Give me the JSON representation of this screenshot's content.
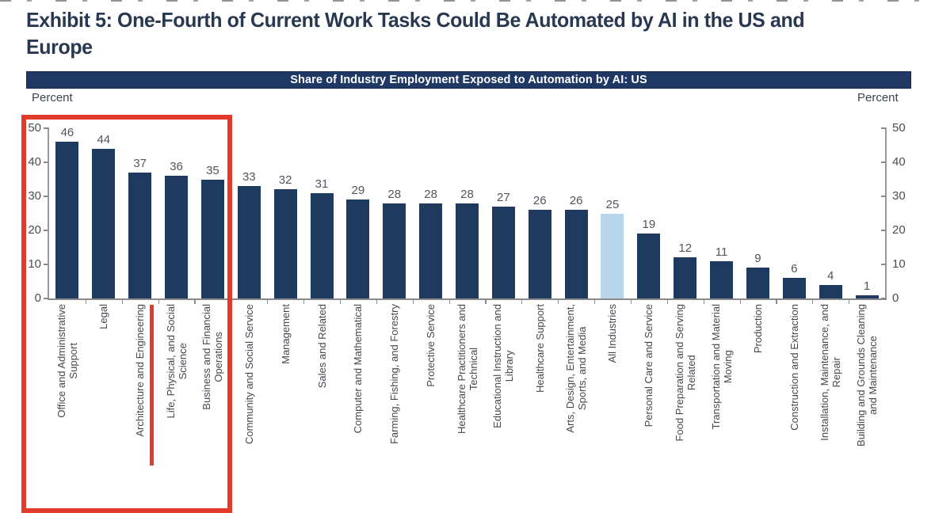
{
  "page": {
    "exhibit_title_lines": [
      "Exhibit 5: One-Fourth of Current Work Tasks Could Be Automated by AI in the US and",
      "Europe"
    ]
  },
  "colors": {
    "title_text": "#273850",
    "header_bg": "#1f3864",
    "header_text": "#ffffff",
    "annotation_red": "#e13b2b",
    "bar_navy": "#1e3a5f",
    "bar_highlight_blue": "#b9d5ec",
    "axis_gray": "#8a8a8a",
    "label_gray": "#45484f"
  },
  "chart": {
    "header_title": "Share of Industry Employment Exposed to Automation by AI: US",
    "left_axis_label": "Percent",
    "right_axis_label": "Percent",
    "y_ticks": [
      0,
      10,
      20,
      30,
      40,
      50
    ]
  },
  "chart_data": {
    "type": "bar",
    "title": "Share of Industry Employment Exposed to Automation by AI: US",
    "xlabel": "",
    "ylabel": "Percent",
    "ylim": [
      0,
      50
    ],
    "grid": false,
    "categories": [
      "Office and Administrative Support",
      "Legal",
      "Architecture and Engineering",
      "Life, Physical, and Social Science",
      "Business and Financial Operations",
      "Community and Social Service",
      "Management",
      "Sales and Related",
      "Computer and Mathematical",
      "Farming, Fishing, and Forestry",
      "Protective Service",
      "Healthcare Practitioners and Technical",
      "Educational Instruction and Library",
      "Healthcare Support",
      "Arts, Design, Entertainment, Sports, and Media",
      "All Industries",
      "Personal Care and Service",
      "Food Preparation and Serving Related",
      "Transportation and Material Moving",
      "Production",
      "Construction and Extraction",
      "Installation, Maintenance, and Repair",
      "Building and Grounds Cleaning and Maintenance"
    ],
    "label_lines": [
      [
        "Office and Administrative",
        "Support"
      ],
      [
        "Legal"
      ],
      [
        "Architecture and Engineering"
      ],
      [
        "Life, Physical, and Social",
        "Science"
      ],
      [
        "Business and Financial",
        "Operations"
      ],
      [
        "Community and Social Service"
      ],
      [
        "Management"
      ],
      [
        "Sales and Related"
      ],
      [
        "Computer and Mathematical"
      ],
      [
        "Farming, Fishing, and Forestry"
      ],
      [
        "Protective Service"
      ],
      [
        "Healthcare Practitioners and",
        "Technical"
      ],
      [
        "Educational Instruction and",
        "Library"
      ],
      [
        "Healthcare Support"
      ],
      [
        "Arts, Design, Entertainment,",
        "Sports, and Media"
      ],
      [
        "All Industries"
      ],
      [
        "Personal Care and Service"
      ],
      [
        "Food Preparation and Serving",
        "Related"
      ],
      [
        "Transportation and Material",
        "Moving"
      ],
      [
        "Production"
      ],
      [
        "Construction and Extraction"
      ],
      [
        "Installation, Maintenance, and",
        "Repair"
      ],
      [
        "Building and Grounds Cleaning",
        "and Maintenance"
      ]
    ],
    "values": [
      46,
      44,
      37,
      36,
      35,
      33,
      32,
      31,
      29,
      28,
      28,
      28,
      27,
      26,
      26,
      25,
      19,
      12,
      11,
      9,
      6,
      4,
      1
    ],
    "highlight_index": 15,
    "highlight_category": "All Industries",
    "colors": {
      "bar": "#1e3a5f",
      "highlight": "#b9d5ec"
    },
    "annotations": [
      {
        "type": "box",
        "color": "#e13b2b",
        "categories": [
          "Office and Administrative Support",
          "Legal",
          "Architecture and Engineering",
          "Life, Physical, and Social Science",
          "Business and Financial Operations"
        ]
      },
      {
        "type": "underline",
        "color": "#e13b2b",
        "category": "Architecture and Engineering"
      }
    ]
  }
}
